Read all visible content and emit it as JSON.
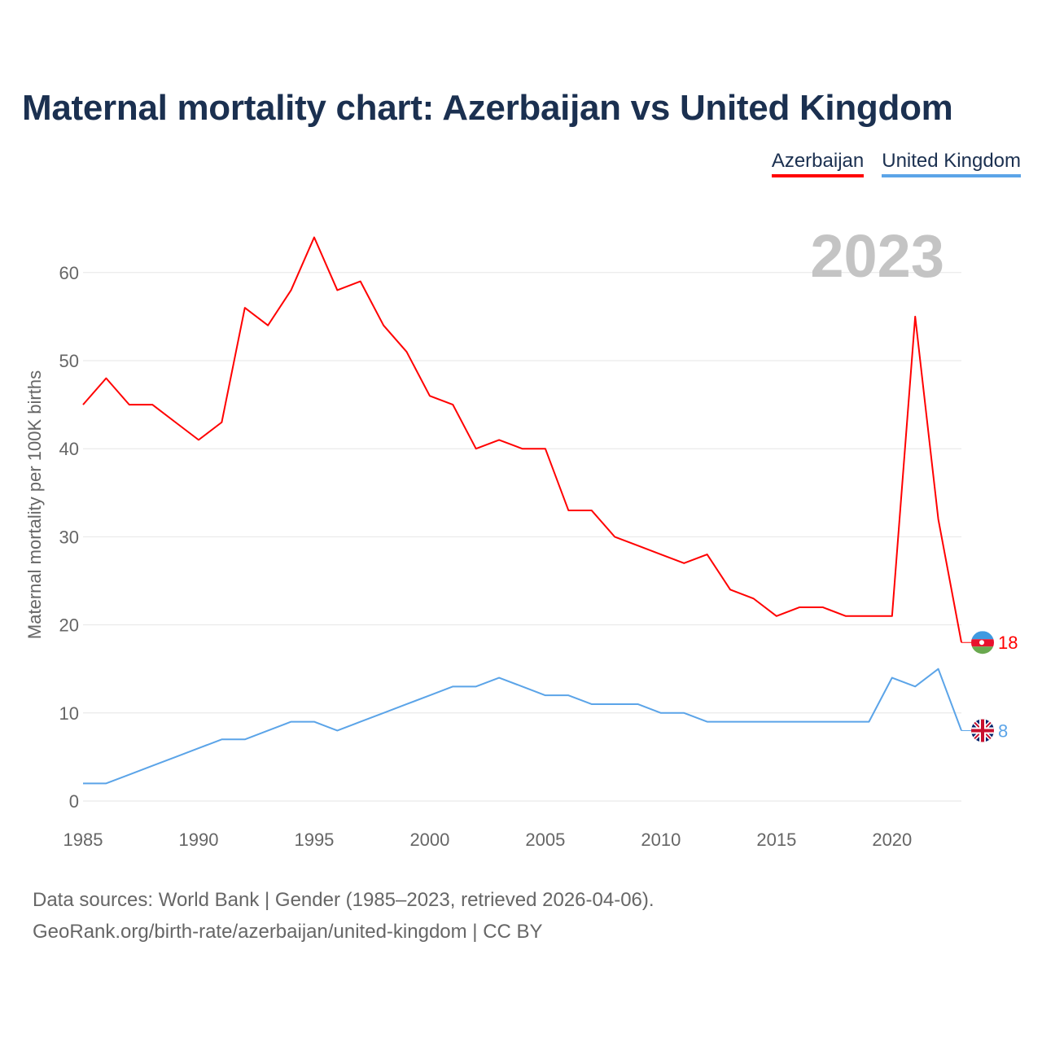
{
  "title": "Maternal mortality chart: Azerbaijan vs United Kingdom",
  "footer": {
    "line1": "Data sources: World Bank | Gender (1985–2023, retrieved 2026-04-06).",
    "line2": "GeoRank.org/birth-rate/azerbaijan/united-kingdom | CC BY"
  },
  "chart_data": {
    "type": "line",
    "title": "Maternal mortality chart: Azerbaijan vs United Kingdom",
    "xlabel": "",
    "ylabel": "Maternal mortality per 100K births",
    "xlim": [
      1985,
      2023
    ],
    "ylim": [
      0,
      65
    ],
    "xticks": [
      1985,
      1990,
      1995,
      2000,
      2005,
      2010,
      2015,
      2020
    ],
    "yticks": [
      0,
      10,
      20,
      30,
      40,
      50,
      60
    ],
    "grid": true,
    "legend_position": "top-right",
    "year_label": "2023",
    "x": [
      1985,
      1986,
      1987,
      1988,
      1989,
      1990,
      1991,
      1992,
      1993,
      1994,
      1995,
      1996,
      1997,
      1998,
      1999,
      2000,
      2001,
      2002,
      2003,
      2004,
      2005,
      2006,
      2007,
      2008,
      2009,
      2010,
      2011,
      2012,
      2013,
      2014,
      2015,
      2016,
      2017,
      2018,
      2019,
      2020,
      2021,
      2022,
      2023
    ],
    "series": [
      {
        "name": "Azerbaijan",
        "color": "#ff0000",
        "end_label": "18",
        "values": [
          45,
          48,
          45,
          45,
          43,
          41,
          43,
          56,
          54,
          58,
          64,
          58,
          59,
          54,
          51,
          46,
          45,
          40,
          41,
          40,
          40,
          33,
          33,
          30,
          29,
          28,
          27,
          28,
          24,
          23,
          21,
          22,
          22,
          21,
          21,
          21,
          55,
          32,
          18
        ]
      },
      {
        "name": "United Kingdom",
        "color": "#5ba4e8",
        "end_label": "8",
        "values": [
          2,
          2,
          3,
          4,
          5,
          6,
          7,
          7,
          8,
          9,
          9,
          8,
          9,
          10,
          11,
          12,
          13,
          13,
          14,
          13,
          12,
          12,
          11,
          11,
          11,
          10,
          10,
          9,
          9,
          9,
          9,
          9,
          9,
          9,
          9,
          14,
          13,
          15,
          8
        ]
      }
    ]
  }
}
